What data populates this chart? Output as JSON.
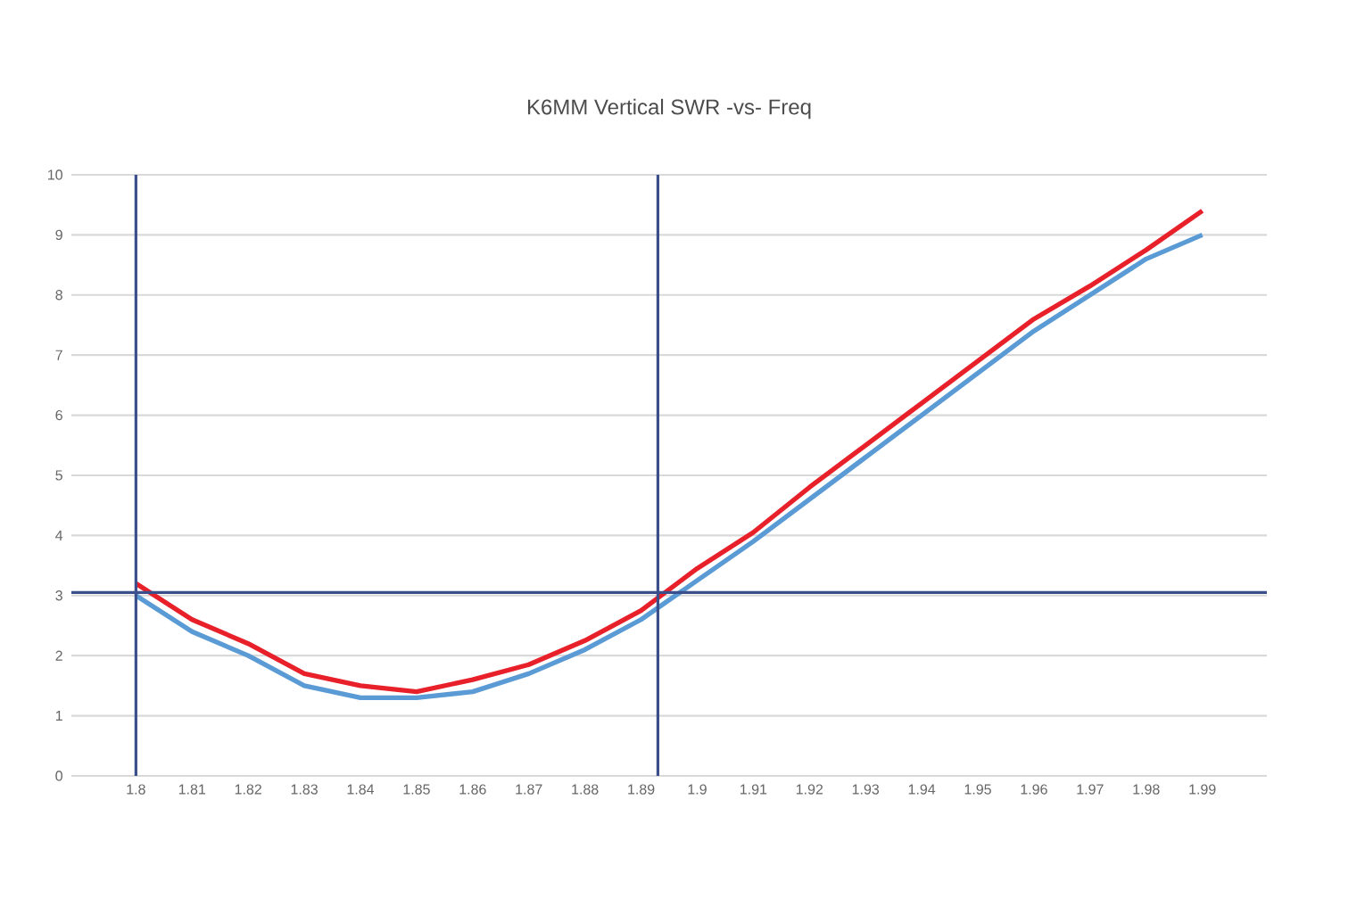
{
  "chart_data": {
    "type": "line",
    "title": "K6MM Vertical SWR -vs- Freq",
    "x": [
      1.8,
      1.81,
      1.82,
      1.83,
      1.84,
      1.85,
      1.86,
      1.87,
      1.88,
      1.89,
      1.9,
      1.91,
      1.92,
      1.93,
      1.94,
      1.95,
      1.96,
      1.97,
      1.98,
      1.99
    ],
    "series": [
      {
        "color": "#e8202a",
        "values": [
          3.2,
          2.6,
          2.2,
          1.7,
          1.5,
          1.4,
          1.6,
          1.85,
          2.25,
          2.75,
          3.45,
          4.05,
          4.8,
          5.5,
          6.2,
          6.9,
          7.6,
          8.15,
          8.75,
          9.4
        ]
      },
      {
        "color": "#5b9bd5",
        "values": [
          3.0,
          2.4,
          2.0,
          1.5,
          1.3,
          1.3,
          1.4,
          1.7,
          2.1,
          2.6,
          3.25,
          3.9,
          4.6,
          5.3,
          6.0,
          6.7,
          7.4,
          8.0,
          8.6,
          9.0
        ]
      }
    ],
    "xlim": [
      1.7885,
      2.0015
    ],
    "xticks": [
      1.8,
      1.81,
      1.82,
      1.83,
      1.84,
      1.85,
      1.86,
      1.87,
      1.88,
      1.89,
      1.9,
      1.91,
      1.92,
      1.93,
      1.94,
      1.95,
      1.96,
      1.97,
      1.98,
      1.99
    ],
    "ylim": [
      0,
      10
    ],
    "yticks": [
      0,
      1,
      2,
      3,
      4,
      5,
      6,
      7,
      8,
      9,
      10
    ],
    "grid": "y",
    "marker": "none",
    "line_style": "solid",
    "ref_lines": [
      {
        "axis": "x",
        "value": 1.8,
        "color": "#3b4f8c"
      },
      {
        "axis": "x",
        "value": 1.893,
        "color": "#3b4f8c"
      },
      {
        "axis": "y",
        "value": 3.05,
        "color": "#3b4f8c"
      }
    ]
  }
}
